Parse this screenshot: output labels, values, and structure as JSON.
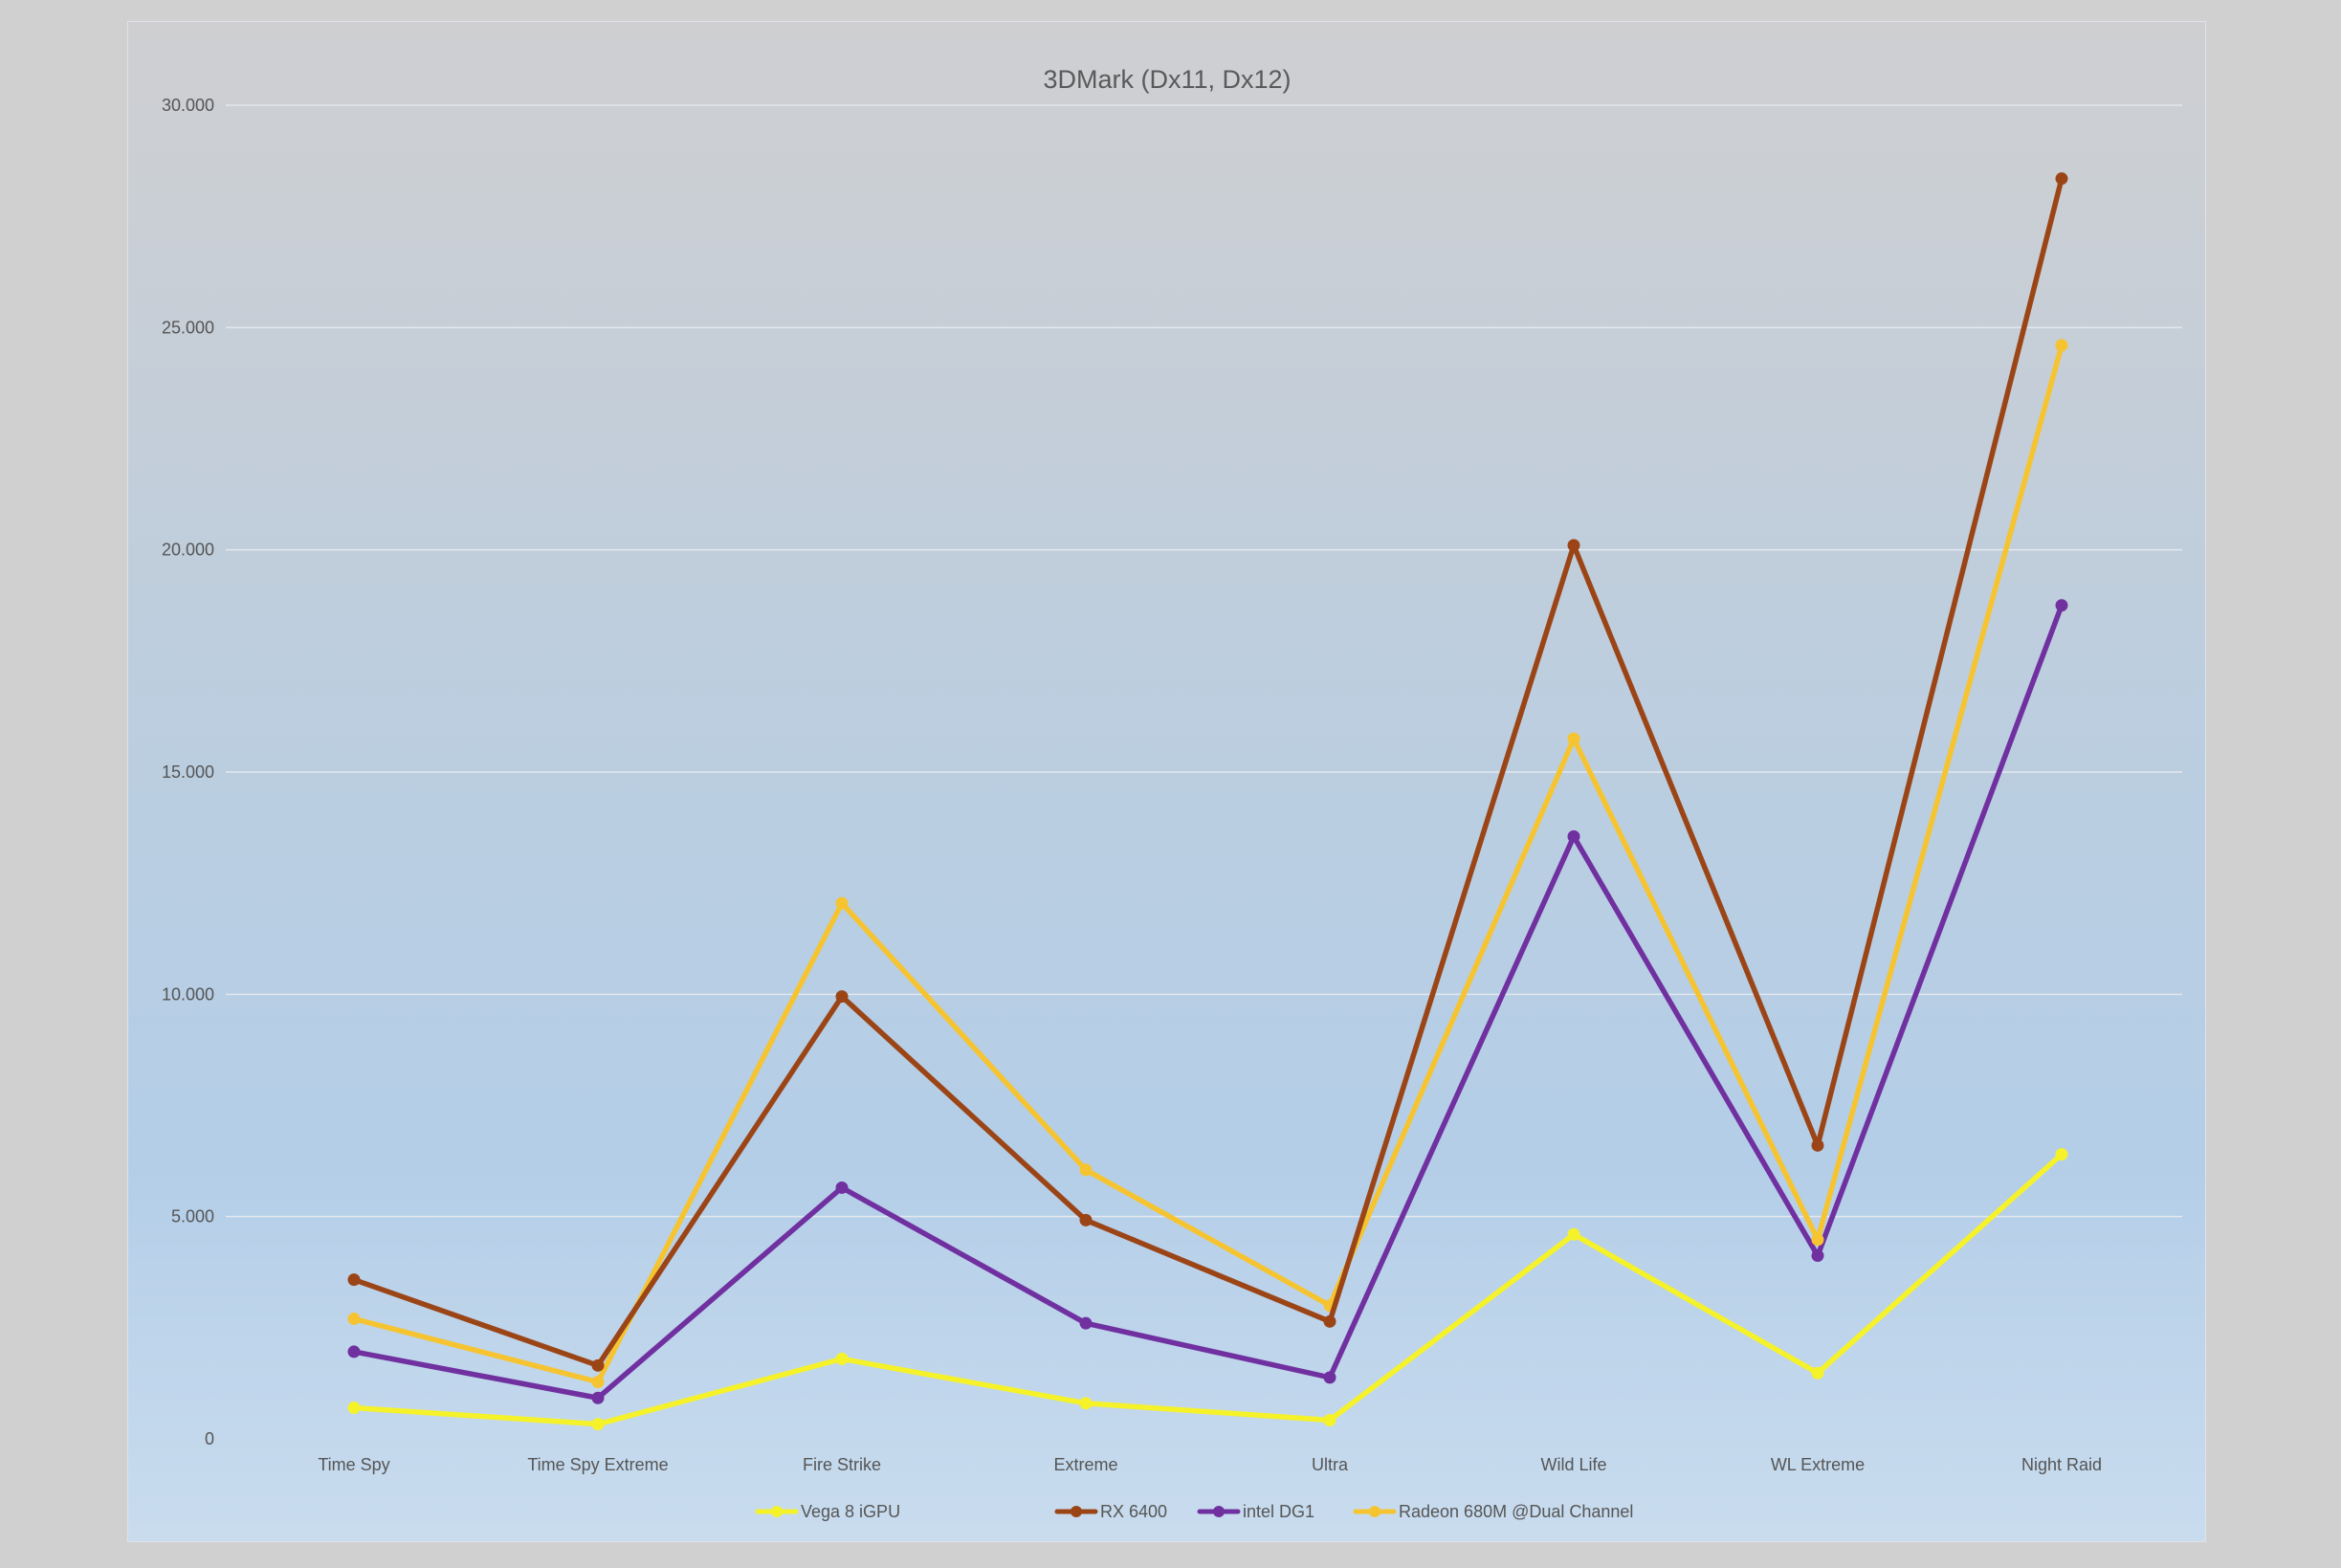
{
  "chart_data": {
    "type": "line",
    "title": "3DMark (Dx11, Dx12)",
    "xlabel": "",
    "ylabel": "",
    "categories": [
      "Time Spy",
      "Time Spy Extreme",
      "Fire Strike",
      "Extreme",
      "Ultra",
      "Wild Life",
      "WL Extreme",
      "Night Raid"
    ],
    "y_ticks": [
      "0",
      "5.000",
      "10.000",
      "15.000",
      "20.000",
      "25.000",
      "30.000"
    ],
    "ylim": [
      0,
      30000
    ],
    "grid": true,
    "legend_position": "bottom",
    "series": [
      {
        "name": "Vega 8 iGPU",
        "color": "#f5f22a",
        "values": [
          700,
          330,
          1800,
          800,
          420,
          4600,
          1480,
          6400
        ]
      },
      {
        "name": "RX 6400",
        "color": "#9b4517",
        "values": [
          3580,
          1650,
          9950,
          4920,
          2640,
          20100,
          6600,
          28350
        ]
      },
      {
        "name": "intel DG1",
        "color": "#7030a0",
        "values": [
          1960,
          920,
          5650,
          2600,
          1380,
          13550,
          4120,
          18750
        ]
      },
      {
        "name": "Radeon 680M @Dual Channel",
        "color": "#f6c431",
        "values": [
          2700,
          1280,
          12050,
          6050,
          3000,
          15750,
          4480,
          24600
        ]
      }
    ]
  }
}
